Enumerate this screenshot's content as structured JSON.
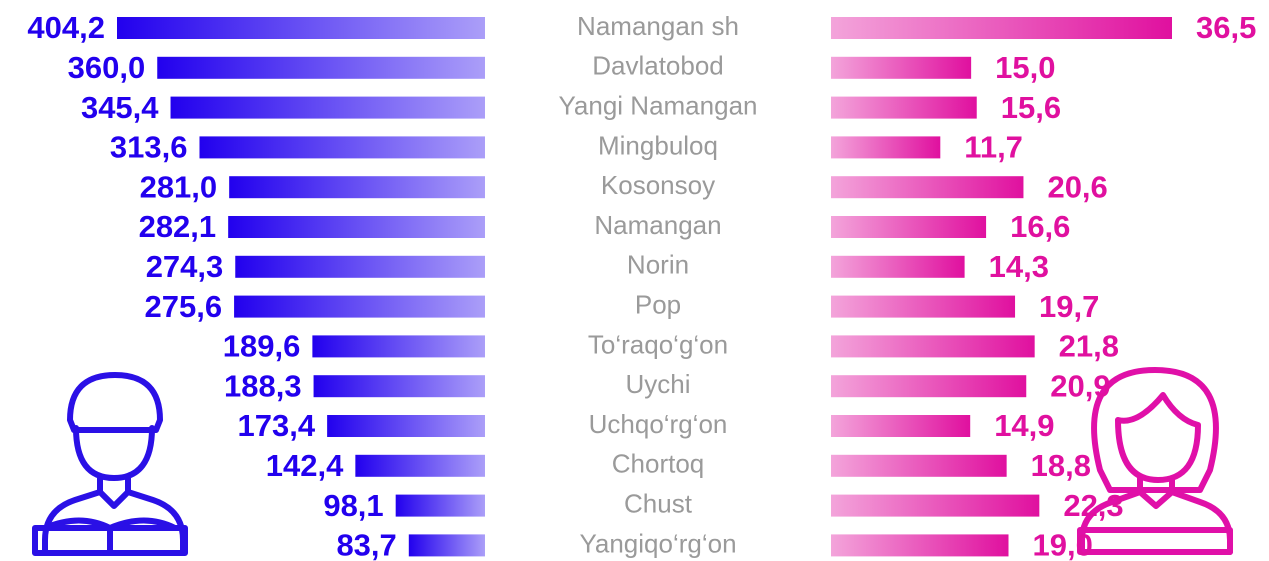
{
  "chart_data": {
    "type": "bar",
    "categories": [
      "Namangan sh",
      "Davlatobod",
      "Yangi Namangan",
      "Mingbuloq",
      "Kosonsoy",
      "Namangan",
      "Norin",
      "Pop",
      "To‘raqo‘g‘on",
      "Uychi",
      "Uchqo‘rg‘on",
      "Chortoq",
      "Chust",
      "Yangiqo‘rg‘on"
    ],
    "series": [
      {
        "color": "#2200ee",
        "values": [
          404.2,
          360.0,
          345.4,
          313.6,
          281.0,
          282.1,
          274.3,
          275.6,
          189.6,
          188.3,
          173.4,
          142.4,
          98.1,
          83.7
        ],
        "value_labels": [
          "404,2",
          "360,0",
          "345,4",
          "313,6",
          "281,0",
          "282,1",
          "274,3",
          "275,6",
          "189,6",
          "188,3",
          "173,4",
          "142,4",
          "98,1",
          "83,7"
        ]
      },
      {
        "color": "#e0109f",
        "values": [
          36.5,
          15.0,
          15.6,
          11.7,
          20.6,
          16.6,
          14.3,
          19.7,
          21.8,
          20.9,
          14.9,
          18.8,
          22.3,
          19.0
        ],
        "value_labels": [
          "36,5",
          "15,0",
          "15,6",
          "11,7",
          "20,6",
          "16,6",
          "14,3",
          "19,7",
          "21,8",
          "20,9",
          "14,9",
          "18,8",
          "22,3",
          "19,0"
        ]
      }
    ]
  }
}
